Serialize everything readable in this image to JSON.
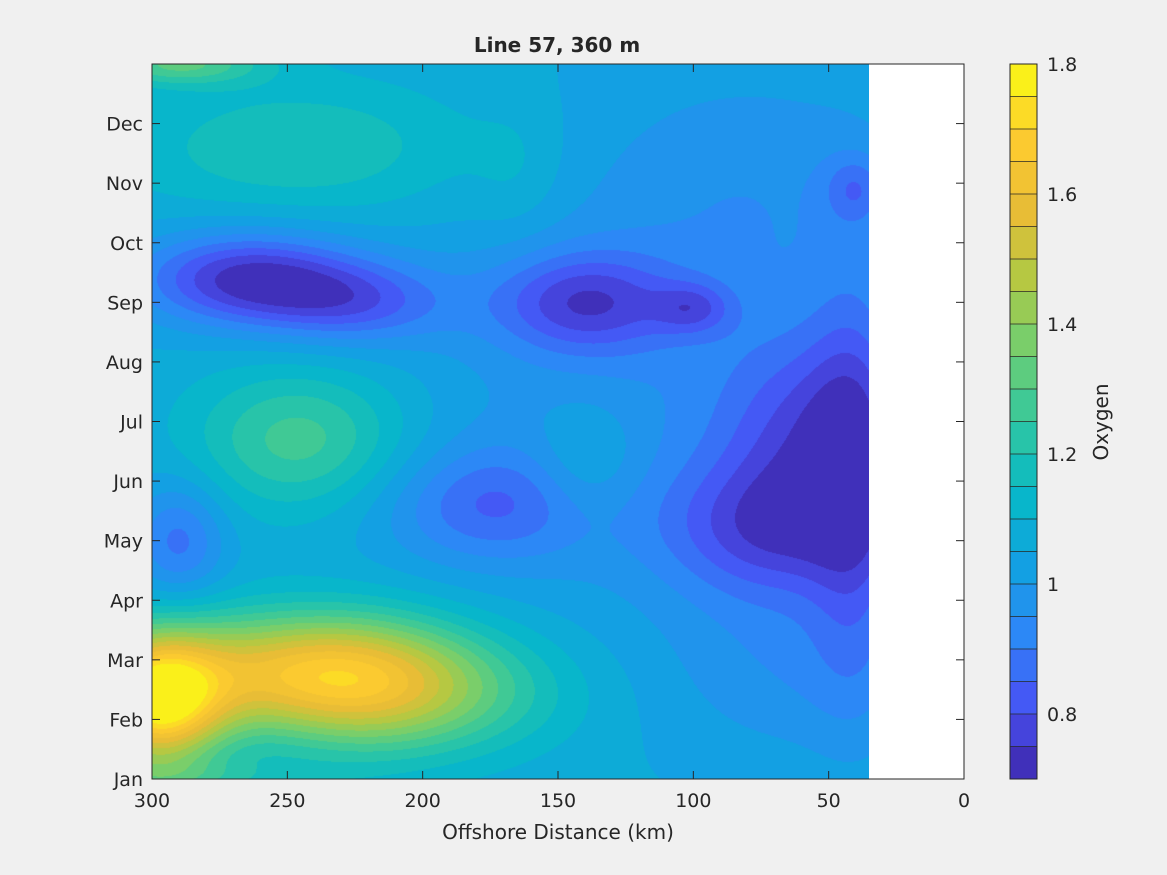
{
  "chart_data": {
    "type": "heatmap",
    "subtype": "filled-contour",
    "title": "Line 57, 360 m",
    "xlabel": "Offshore Distance (km)",
    "ylabel": "",
    "xlim": [
      300,
      0
    ],
    "x_reversed": true,
    "x_data_extent": [
      300,
      35
    ],
    "xticks": [
      300,
      250,
      200,
      150,
      100,
      50,
      0
    ],
    "yticks": [
      "Jan",
      "Feb",
      "Mar",
      "Apr",
      "May",
      "Jun",
      "Jul",
      "Aug",
      "Sep",
      "Oct",
      "Nov",
      "Dec"
    ],
    "ylim_months": [
      1,
      13
    ],
    "colorbar": {
      "label": "Oxygen",
      "range": [
        0.7,
        1.8
      ],
      "ticks": [
        0.8,
        1,
        1.2,
        1.4,
        1.6,
        1.8
      ],
      "tick_labels": [
        "0.8",
        "1",
        "1.2",
        "1.4",
        "1.6",
        "1.8"
      ],
      "levels": 22,
      "colormap": "parula"
    },
    "background_field": 1.06,
    "features": [
      {
        "label": "high",
        "x": 298,
        "month": 2.3,
        "value": 1.72,
        "sx": 17,
        "sy": 0.75
      },
      {
        "label": "high",
        "x": 250,
        "month": 2.8,
        "value": 1.5,
        "sx": 40,
        "sy": 0.7
      },
      {
        "label": "high",
        "x": 218,
        "month": 2.5,
        "value": 1.33,
        "sx": 30,
        "sy": 0.8
      },
      {
        "label": "high",
        "x": 180,
        "month": 2.4,
        "value": 1.17,
        "sx": 30,
        "sy": 0.7
      },
      {
        "label": "high",
        "x": 245,
        "month": 6.7,
        "value": 1.28,
        "sx": 28,
        "sy": 0.85
      },
      {
        "label": "high",
        "x": 140,
        "month": 6.3,
        "value": 1.16,
        "sx": 14,
        "sy": 0.7
      },
      {
        "label": "high",
        "x": 245,
        "month": 11.6,
        "value": 1.2,
        "sx": 45,
        "sy": 0.8
      },
      {
        "label": "high",
        "x": 165,
        "month": 11.2,
        "value": 1.11,
        "sx": 12,
        "sy": 0.8
      },
      {
        "label": "high",
        "x": 290,
        "month": 13.0,
        "value": 1.3,
        "sx": 22,
        "sy": 0.25
      },
      {
        "label": "high",
        "x": 295,
        "month": 1.0,
        "value": 1.18,
        "sx": 40,
        "sy": 0.25
      },
      {
        "label": "high",
        "x": 45,
        "month": 5.5,
        "value": 1.08,
        "sx": 12,
        "sy": 0.8
      },
      {
        "label": "low",
        "x": 265,
        "month": 9.4,
        "value": 0.74,
        "sx": 28,
        "sy": 0.55
      },
      {
        "label": "low",
        "x": 225,
        "month": 9.0,
        "value": 0.86,
        "sx": 25,
        "sy": 0.5
      },
      {
        "label": "low",
        "x": 290,
        "month": 5.0,
        "value": 0.88,
        "sx": 12,
        "sy": 0.7
      },
      {
        "label": "low",
        "x": 175,
        "month": 5.6,
        "value": 0.88,
        "sx": 28,
        "sy": 0.7
      },
      {
        "label": "low",
        "x": 140,
        "month": 9.0,
        "value": 0.82,
        "sx": 24,
        "sy": 0.6
      },
      {
        "label": "low",
        "x": 100,
        "month": 8.9,
        "value": 0.92,
        "sx": 10,
        "sy": 0.3
      },
      {
        "label": "low",
        "x": 70,
        "month": 5.2,
        "value": 0.84,
        "sx": 30,
        "sy": 0.8
      },
      {
        "label": "low",
        "x": 55,
        "month": 6.8,
        "value": 0.84,
        "sx": 25,
        "sy": 1.2
      },
      {
        "label": "low",
        "x": 40,
        "month": 6.0,
        "value": 0.9,
        "sx": 12,
        "sy": 2.5
      },
      {
        "label": "low",
        "x": 60,
        "month": 3.0,
        "value": 0.96,
        "sx": 35,
        "sy": 1.2
      },
      {
        "label": "low",
        "x": 40,
        "month": 10.9,
        "value": 0.94,
        "sx": 8,
        "sy": 0.4
      },
      {
        "label": "low",
        "x": 75,
        "month": 11.0,
        "value": 0.98,
        "sx": 45,
        "sy": 1.5
      },
      {
        "label": "low",
        "x": 120,
        "month": 7.5,
        "value": 0.97,
        "sx": 60,
        "sy": 2.5
      }
    ]
  }
}
